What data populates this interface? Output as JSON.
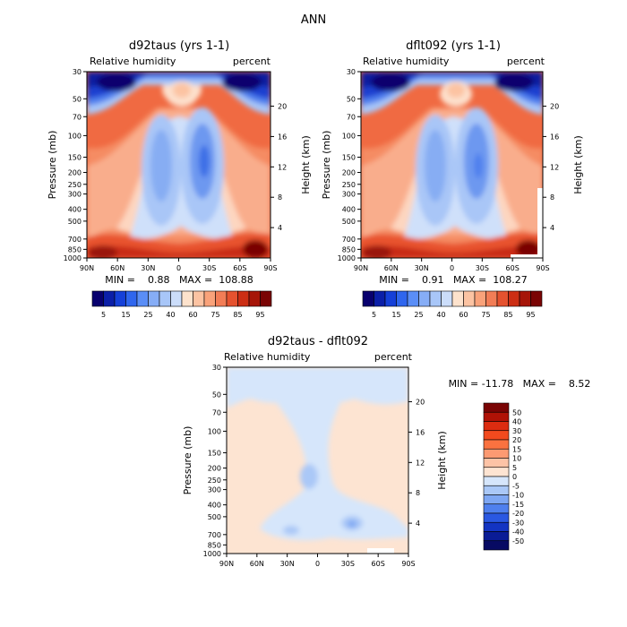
{
  "chart_data": {
    "type": "heatmap",
    "title": "ANN",
    "panels": [
      {
        "id": "top-left",
        "title": "d92taus (yrs 1-1)",
        "left_label": "Relative humidity",
        "right_label": "percent",
        "ylabel": "Pressure (mb)",
        "ylabel_right": "Height (km)",
        "x_ticks": [
          "90N",
          "60N",
          "30N",
          "0",
          "30S",
          "60S",
          "90S"
        ],
        "x_values": [
          90,
          60,
          30,
          0,
          -30,
          -60,
          -90
        ],
        "y_ticks": [
          "30",
          "50",
          "70",
          "100",
          "150",
          "200",
          "250",
          "300",
          "400",
          "500",
          "700",
          "850",
          "1000"
        ],
        "y_values": [
          30,
          50,
          70,
          100,
          150,
          200,
          250,
          300,
          400,
          500,
          700,
          850,
          1000
        ],
        "height_ticks": [
          "20",
          "16",
          "12",
          "8",
          "4"
        ],
        "height_values": [
          20,
          16,
          12,
          8,
          4
        ],
        "min_max_text": "MIN =    0.88   MAX =  108.88",
        "min": 0.88,
        "max": 108.88,
        "colorbar_labels": [
          "5",
          "15",
          "25",
          "40",
          "60",
          "75",
          "85",
          "95"
        ],
        "colorbar_levels": [
          5,
          10,
          15,
          20,
          25,
          30,
          40,
          50,
          60,
          70,
          75,
          80,
          85,
          90,
          95
        ],
        "colorbar_colors": [
          "#08006e",
          "#0b1fa8",
          "#1540d8",
          "#2f66ee",
          "#5a8ef7",
          "#86adf6",
          "#a8c6f8",
          "#cbddfa",
          "#fde2cc",
          "#fcc3a2",
          "#f9a27a",
          "#f27d56",
          "#e5522f",
          "#cc2e14",
          "#a61508",
          "#7a0404"
        ],
        "variant": "a"
      },
      {
        "id": "top-right",
        "title": "dflt092 (yrs 1-1)",
        "left_label": "Relative humidity",
        "right_label": "percent",
        "ylabel": "Pressure (mb)",
        "ylabel_right": "Height (km)",
        "x_ticks": [
          "90N",
          "60N",
          "30N",
          "0",
          "30S",
          "60S",
          "90S"
        ],
        "x_values": [
          90,
          60,
          30,
          0,
          -30,
          -60,
          -90
        ],
        "y_ticks": [
          "30",
          "50",
          "70",
          "100",
          "150",
          "200",
          "250",
          "300",
          "400",
          "500",
          "700",
          "850",
          "1000"
        ],
        "y_values": [
          30,
          50,
          70,
          100,
          150,
          200,
          250,
          300,
          400,
          500,
          700,
          850,
          1000
        ],
        "height_ticks": [
          "20",
          "16",
          "12",
          "8",
          "4"
        ],
        "height_values": [
          20,
          16,
          12,
          8,
          4
        ],
        "min_max_text": "MIN =    0.91   MAX =  108.27",
        "min": 0.91,
        "max": 108.27,
        "colorbar_labels": [
          "5",
          "15",
          "25",
          "40",
          "60",
          "75",
          "85",
          "95"
        ],
        "colorbar_levels": [
          5,
          10,
          15,
          20,
          25,
          30,
          40,
          50,
          60,
          70,
          75,
          80,
          85,
          90,
          95
        ],
        "colorbar_colors": [
          "#08006e",
          "#0b1fa8",
          "#1540d8",
          "#2f66ee",
          "#5a8ef7",
          "#86adf6",
          "#a8c6f8",
          "#cbddfa",
          "#fde2cc",
          "#fcc3a2",
          "#f9a27a",
          "#f27d56",
          "#e5522f",
          "#cc2e14",
          "#a61508",
          "#7a0404"
        ],
        "variant": "b"
      },
      {
        "id": "bottom-diff",
        "title": "d92taus - dflt092",
        "left_label": "Relative humidity",
        "right_label": "percent",
        "ylabel": "Pressure (mb)",
        "ylabel_right": "Height (km)",
        "x_ticks": [
          "90N",
          "60N",
          "30N",
          "0",
          "30S",
          "60S",
          "90S"
        ],
        "x_values": [
          90,
          60,
          30,
          0,
          -30,
          -60,
          -90
        ],
        "y_ticks": [
          "30",
          "50",
          "70",
          "100",
          "150",
          "200",
          "250",
          "300",
          "400",
          "500",
          "700",
          "850",
          "1000"
        ],
        "y_values": [
          30,
          50,
          70,
          100,
          150,
          200,
          250,
          300,
          400,
          500,
          700,
          850,
          1000
        ],
        "height_ticks": [
          "20",
          "16",
          "12",
          "8",
          "4"
        ],
        "height_values": [
          20,
          16,
          12,
          8,
          4
        ],
        "min_max_text": "MIN = -11.78   MAX =    8.52",
        "min": -11.78,
        "max": 8.52,
        "colorbar_labels": [
          "50",
          "40",
          "30",
          "20",
          "15",
          "10",
          "5",
          "0",
          "-5",
          "-10",
          "-15",
          "-20",
          "-30",
          "-40",
          "-50"
        ],
        "colorbar_levels": [
          50,
          40,
          30,
          20,
          15,
          10,
          5,
          0,
          -5,
          -10,
          -15,
          -20,
          -30,
          -40,
          -50
        ],
        "colorbar_colors": [
          "#7a0404",
          "#b01206",
          "#dc2c10",
          "#f24a1e",
          "#fa7240",
          "#fc9a72",
          "#fdc3a6",
          "#fde4d2",
          "#d6e6fb",
          "#aac8f7",
          "#7ea7f3",
          "#4f80ee",
          "#2a58e2",
          "#1334c2",
          "#0a1c96",
          "#070a63"
        ]
      }
    ]
  }
}
